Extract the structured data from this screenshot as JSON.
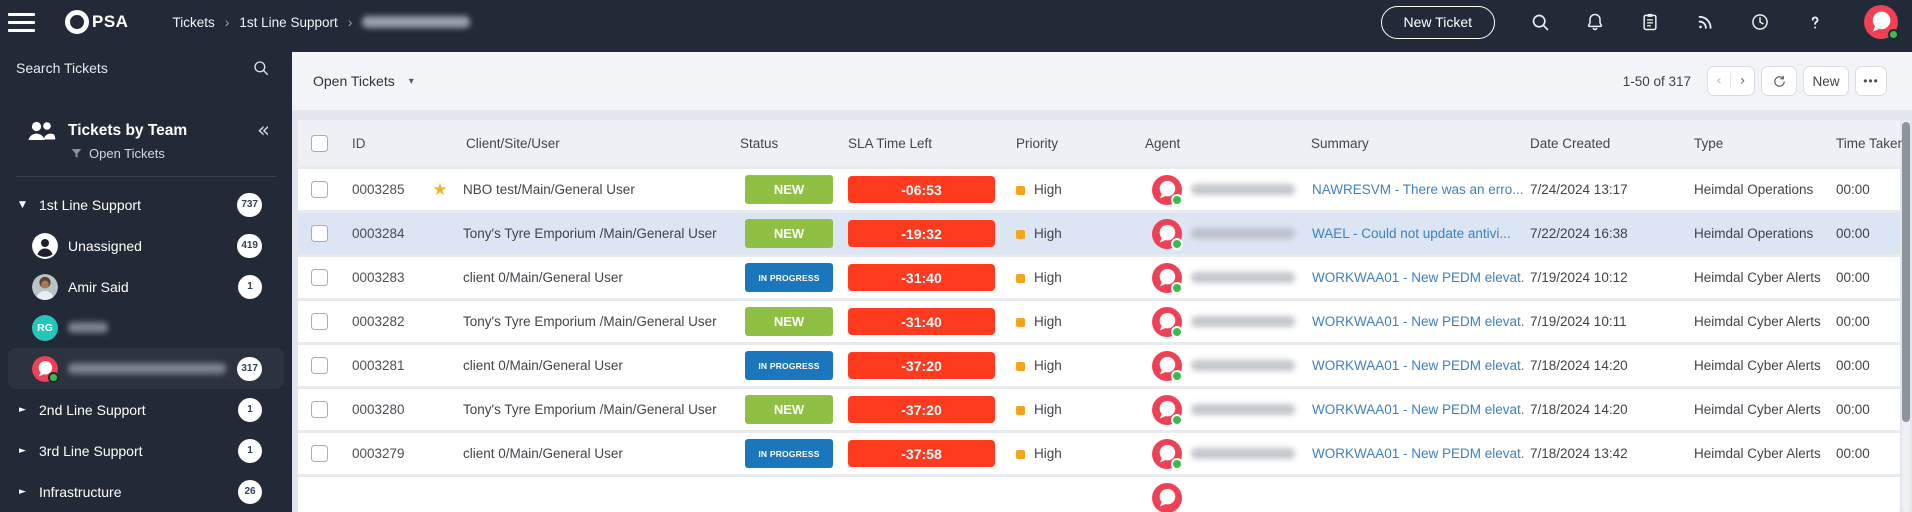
{
  "topnav": {
    "logo_text": "PSA",
    "breadcrumb": [
      {
        "label": "Tickets"
      },
      {
        "label": "1st Line Support"
      },
      {
        "redacted": true,
        "blob_width": 108
      }
    ],
    "new_ticket_label": "New Ticket",
    "icons": [
      {
        "name": "search"
      },
      {
        "name": "bell"
      },
      {
        "name": "clipboard"
      },
      {
        "name": "rss"
      },
      {
        "name": "clock"
      },
      {
        "name": "help"
      }
    ],
    "avatar": {
      "type": "chat",
      "online": true
    }
  },
  "sidebar": {
    "search_label": "Search Tickets",
    "panel_title": "Tickets by Team",
    "panel_filter": "Open Tickets",
    "collapse_icon": "«",
    "items": [
      {
        "type": "team",
        "label": "1st Line Support",
        "count": "737",
        "expanded": true
      },
      {
        "type": "user",
        "avatar": "person",
        "label": "Unassigned",
        "count": "419"
      },
      {
        "type": "user",
        "avatar": "photo",
        "label": "Amir Said",
        "count": "1"
      },
      {
        "type": "user",
        "avatar": "initials",
        "initials": "RG",
        "avatar_color": "#27c4bb",
        "redacted": true,
        "blob_width": 40
      },
      {
        "type": "user",
        "avatar": "chat",
        "online": true,
        "redacted": true,
        "blob_width": 158,
        "count": "317",
        "selected": true
      },
      {
        "type": "team",
        "label": "2nd Line Support",
        "count": "1",
        "expanded": false
      },
      {
        "type": "team",
        "label": "3rd Line Support",
        "count": "1",
        "expanded": false
      },
      {
        "type": "team",
        "label": "Infrastructure",
        "count": "26",
        "expanded": false
      }
    ]
  },
  "toolbar": {
    "view_label": "Open Tickets",
    "range_label": "1-50 of 317",
    "prev_icon": "‹",
    "next_icon": "›",
    "new_label": "New",
    "more_label": "•••"
  },
  "table": {
    "columns": [
      "ID",
      "Client/Site/User",
      "Status",
      "SLA Time Left",
      "Priority",
      "Agent",
      "Summary",
      "Date Created",
      "Type",
      "Time Taken"
    ],
    "agent_redacted": true,
    "partial_row_visible": true,
    "rows": [
      {
        "id": "0003285",
        "starred": true,
        "client": "NBO test/Main/General User",
        "status": "NEW",
        "sla": "-06:53",
        "priority": "High",
        "summary": "NAWRESVM - There was an erro...",
        "date": "7/24/2024 13:17",
        "type": "Heimdal Operations",
        "time": "00:00",
        "highlighted": false
      },
      {
        "id": "0003284",
        "starred": false,
        "client": "Tony's Tyre Emporium /Main/General User",
        "status": "NEW",
        "sla": "-19:32",
        "priority": "High",
        "summary": "WAEL - Could not update antivi...",
        "date": "7/22/2024 16:38",
        "type": "Heimdal Operations",
        "time": "00:00",
        "highlighted": true
      },
      {
        "id": "0003283",
        "starred": false,
        "client": "client 0/Main/General User",
        "status": "IN PROGRESS",
        "sla": "-31:40",
        "priority": "High",
        "summary": "WORKWAA01 - New PEDM elevat...",
        "date": "7/19/2024 10:12",
        "type": "Heimdal Cyber Alerts",
        "time": "00:00",
        "highlighted": false
      },
      {
        "id": "0003282",
        "starred": false,
        "client": "Tony's Tyre Emporium /Main/General User",
        "status": "NEW",
        "sla": "-31:40",
        "priority": "High",
        "summary": "WORKWAA01 - New PEDM elevat...",
        "date": "7/19/2024 10:11",
        "type": "Heimdal Cyber Alerts",
        "time": "00:00",
        "highlighted": false
      },
      {
        "id": "0003281",
        "starred": false,
        "client": "client 0/Main/General User",
        "status": "IN PROGRESS",
        "sla": "-37:20",
        "priority": "High",
        "summary": "WORKWAA01 - New PEDM elevat...",
        "date": "7/18/2024 14:20",
        "type": "Heimdal Cyber Alerts",
        "time": "00:00",
        "highlighted": false
      },
      {
        "id": "0003280",
        "starred": false,
        "client": "Tony's Tyre Emporium /Main/General User",
        "status": "NEW",
        "sla": "-37:20",
        "priority": "High",
        "summary": "WORKWAA01 - New PEDM elevat...",
        "date": "7/18/2024 14:20",
        "type": "Heimdal Cyber Alerts",
        "time": "00:00",
        "highlighted": false
      },
      {
        "id": "0003279",
        "starred": false,
        "client": "client 0/Main/General User",
        "status": "IN PROGRESS",
        "sla": "-37:58",
        "priority": "High",
        "summary": "WORKWAA01 - New PEDM elevat...",
        "date": "7/18/2024 13:42",
        "type": "Heimdal Cyber Alerts",
        "time": "00:00",
        "highlighted": false
      }
    ]
  },
  "colors": {
    "nav_bg": "#232a37",
    "status_new": "#8fc043",
    "status_in_progress": "#1b76bc",
    "sla_badge": "#fe3b1f",
    "priority_high": "#f6a21d",
    "link": "#3e7fc1",
    "avatar_red": "#ee4155",
    "presence_green": "#3dba4e",
    "star_gold": "#f0b429"
  }
}
